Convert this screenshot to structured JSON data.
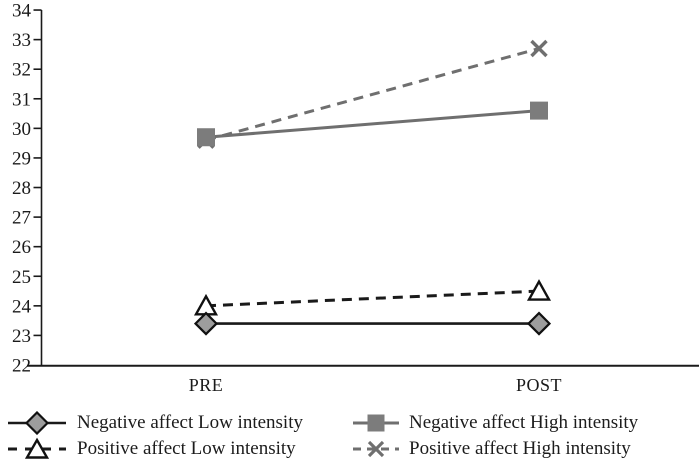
{
  "chart_data": {
    "type": "line",
    "title": "",
    "xlabel": "",
    "ylabel": "",
    "categories": [
      "PRE",
      "POST"
    ],
    "series": [
      {
        "name": "Negative affect Low intensity",
        "values": [
          23.4,
          23.4
        ],
        "line": "solid",
        "line_color": "#1a1a1a",
        "line_width": 2.6,
        "marker": "diamond",
        "marker_fill": "#9d9d9d",
        "marker_stroke": "#111111"
      },
      {
        "name": "Positive affect Low intensity",
        "values": [
          24.0,
          24.5
        ],
        "line": "dashed",
        "line_color": "#1a1a1a",
        "line_width": 3,
        "marker": "triangle",
        "marker_fill": "#ffffff",
        "marker_stroke": "#111111"
      },
      {
        "name": "Negative affect High intensity",
        "values": [
          29.7,
          30.6
        ],
        "line": "solid",
        "line_color": "#6f6f6f",
        "line_width": 3,
        "marker": "square",
        "marker_fill": "#7c7c7c",
        "marker_stroke": "#6f6f6f"
      },
      {
        "name": "Positive affect High intensity",
        "values": [
          29.6,
          32.7
        ],
        "line": "dashed",
        "line_color": "#6f6f6f",
        "line_width": 3,
        "marker": "x",
        "marker_fill": "none",
        "marker_stroke": "#6f6f6f"
      }
    ],
    "ylim": [
      22,
      34
    ],
    "ytick_step": 1,
    "ytick_labels": [
      "22",
      "23",
      "24",
      "25",
      "26",
      "27",
      "28",
      "29",
      "30",
      "31",
      "32",
      "33",
      "34"
    ],
    "grid": false,
    "legend_position": "bottom"
  }
}
